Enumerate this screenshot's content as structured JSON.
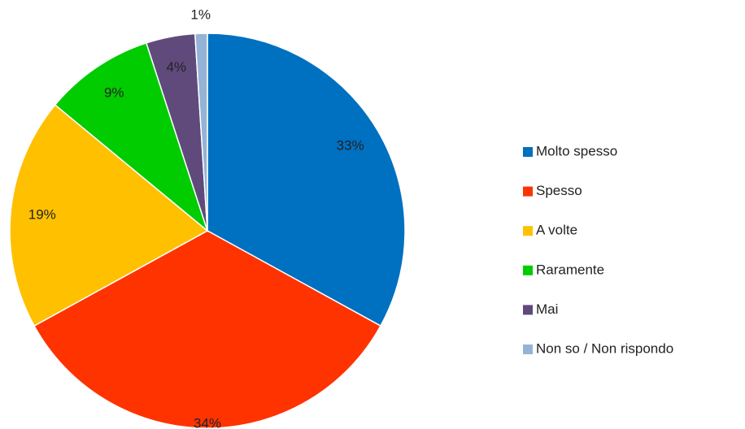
{
  "chart_data": {
    "type": "pie",
    "categories": [
      "Molto spesso",
      "Spesso",
      "A volte",
      "Raramente",
      "Mai",
      "Non so / Non rispondo"
    ],
    "values": [
      33,
      34,
      19,
      9,
      4,
      1
    ],
    "value_labels": [
      "33%",
      "34%",
      "19%",
      "9%",
      "4%",
      "1%"
    ],
    "colors": [
      "#0070c0",
      "#ff3300",
      "#ffc000",
      "#00cc00",
      "#604a7b",
      "#95b3d7"
    ],
    "legend": "right"
  }
}
